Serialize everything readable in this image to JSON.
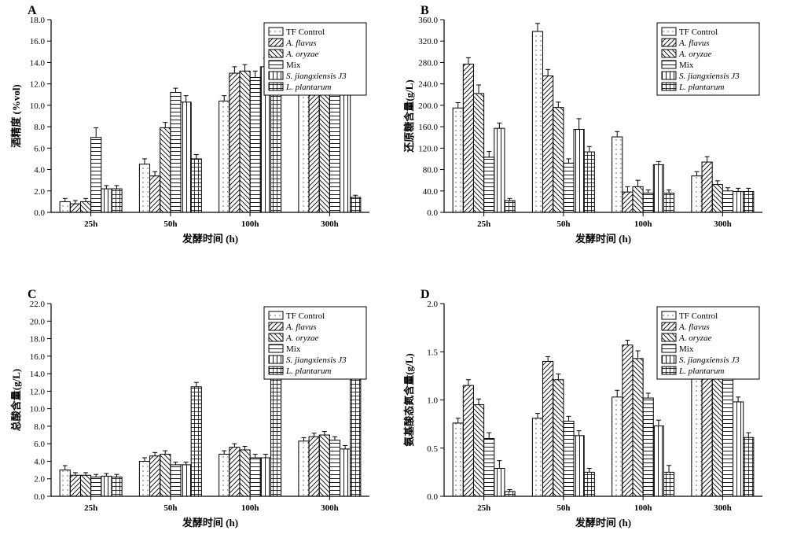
{
  "colors": {
    "bg": "#ffffff",
    "axis": "#000000",
    "bar_fill": "#ffffff",
    "bar_stroke": "#000000",
    "text": "#000000"
  },
  "legend": {
    "items": [
      {
        "label": "TF Control",
        "pattern": "light-dots"
      },
      {
        "label": "A. flavus",
        "pattern": "diag-right",
        "italic": true
      },
      {
        "label": "A. oryzae",
        "pattern": "diag-left",
        "italic": true
      },
      {
        "label": "Mix",
        "pattern": "horiz"
      },
      {
        "label": "S. jiangxiensis J3",
        "pattern": "vert",
        "italic": true
      },
      {
        "label": "L. plantarum",
        "pattern": "grid",
        "italic": true
      }
    ],
    "box_stroke": "#000000"
  },
  "categories": [
    "25h",
    "50h",
    "100h",
    "300h"
  ],
  "xlabel": "发酵时间 (h)",
  "tick_fontsize": 11,
  "label_fontsize": 13,
  "bar_width": 0.13,
  "group_gap": 0.22,
  "error_cap": 3,
  "panels": {
    "A": {
      "label": "A",
      "ylabel": "酒精度 (%vol)",
      "ylim": [
        0,
        18
      ],
      "ytick_step": 2,
      "y_decimals": 1,
      "data": {
        "25h": {
          "values": [
            1.0,
            0.8,
            1.0,
            7.0,
            2.2,
            2.2
          ],
          "err": [
            0.3,
            0.3,
            0.3,
            0.9,
            0.3,
            0.3
          ]
        },
        "50h": {
          "values": [
            4.5,
            3.4,
            7.9,
            11.2,
            10.3,
            5.0
          ],
          "err": [
            0.5,
            0.4,
            0.5,
            0.4,
            0.6,
            0.4
          ]
        },
        "100h": {
          "values": [
            10.4,
            13.0,
            13.2,
            12.6,
            13.6,
            13.6
          ],
          "err": [
            0.5,
            0.6,
            0.6,
            0.6,
            0.8,
            0.5
          ]
        },
        "300h": {
          "values": [
            13.0,
            14.4,
            13.8,
            15.9,
            14.6,
            1.4
          ],
          "err": [
            1.2,
            1.5,
            1.4,
            0.9,
            1.2,
            0.2
          ]
        }
      }
    },
    "B": {
      "label": "B",
      "ylabel": "还原糖含量(g/L)",
      "ylim": [
        0,
        360
      ],
      "ytick_step": 40,
      "y_decimals": 1,
      "data": {
        "25h": {
          "values": [
            195,
            277,
            222,
            103,
            157,
            22
          ],
          "err": [
            10,
            12,
            16,
            11,
            10,
            4
          ]
        },
        "50h": {
          "values": [
            338,
            255,
            196,
            92,
            155,
            113
          ],
          "err": [
            15,
            12,
            10,
            8,
            20,
            10
          ]
        },
        "100h": {
          "values": [
            141,
            38,
            48,
            36,
            89,
            36
          ],
          "err": [
            10,
            10,
            12,
            6,
            6,
            6
          ]
        },
        "300h": {
          "values": [
            68,
            94,
            52,
            40,
            39,
            39
          ],
          "err": [
            8,
            10,
            7,
            6,
            6,
            6
          ]
        }
      }
    },
    "C": {
      "label": "C",
      "ylabel": "总酸含量(g/L)",
      "ylim": [
        0,
        22
      ],
      "ytick_step": 2,
      "y_decimals": 1,
      "data": {
        "25h": {
          "values": [
            3.0,
            2.4,
            2.4,
            2.2,
            2.3,
            2.2
          ],
          "err": [
            0.5,
            0.3,
            0.3,
            0.3,
            0.3,
            0.3
          ]
        },
        "50h": {
          "values": [
            4.0,
            4.6,
            4.8,
            3.6,
            3.6,
            12.5
          ],
          "err": [
            0.4,
            0.4,
            0.4,
            0.3,
            0.3,
            0.5
          ]
        },
        "100h": {
          "values": [
            4.8,
            5.6,
            5.3,
            4.4,
            4.4,
            15.2
          ],
          "err": [
            0.4,
            0.4,
            0.4,
            0.4,
            0.4,
            0.5
          ]
        },
        "300h": {
          "values": [
            6.3,
            6.8,
            7.0,
            6.4,
            5.4,
            17.5
          ],
          "err": [
            0.4,
            0.4,
            0.4,
            0.4,
            0.4,
            0.5
          ]
        }
      }
    },
    "D": {
      "label": "D",
      "ylabel": "氨基酸态氮含量(g/L)",
      "ylim": [
        0,
        2.0
      ],
      "ytick_step": 0.5,
      "y_decimals": 1,
      "data": {
        "25h": {
          "values": [
            0.76,
            1.15,
            0.95,
            0.6,
            0.29,
            0.05
          ],
          "err": [
            0.05,
            0.06,
            0.06,
            0.06,
            0.08,
            0.02
          ]
        },
        "50h": {
          "values": [
            0.81,
            1.4,
            1.21,
            0.78,
            0.63,
            0.25
          ],
          "err": [
            0.05,
            0.05,
            0.06,
            0.05,
            0.05,
            0.04
          ]
        },
        "100h": {
          "values": [
            1.03,
            1.57,
            1.43,
            1.02,
            0.73,
            0.25
          ],
          "err": [
            0.07,
            0.05,
            0.08,
            0.05,
            0.06,
            0.07
          ]
        },
        "300h": {
          "values": [
            1.24,
            1.69,
            1.49,
            1.29,
            0.98,
            0.61
          ],
          "err": [
            0.12,
            0.05,
            0.07,
            0.06,
            0.05,
            0.05
          ]
        }
      }
    }
  }
}
